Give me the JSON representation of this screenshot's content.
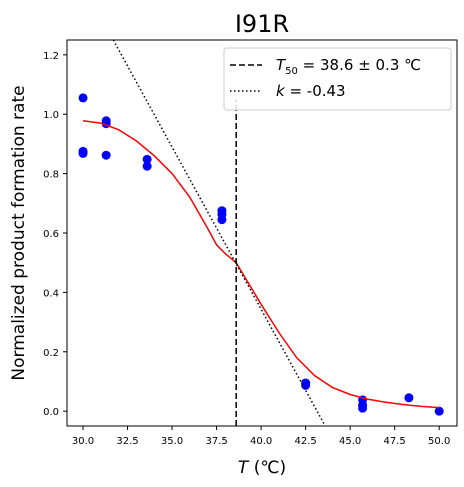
{
  "chart_data": {
    "type": "scatter",
    "title": "I91R",
    "xlabel_italic": "T",
    "xlabel_unit": " (℃)",
    "ylabel": "Normalized product formation rate",
    "xlim": [
      29.1,
      51.0
    ],
    "ylim": [
      -0.05,
      1.25
    ],
    "xticks": [
      30.0,
      32.5,
      35.0,
      37.5,
      40.0,
      42.5,
      45.0,
      47.5,
      50.0
    ],
    "xtick_labels": [
      "30.0",
      "32.5",
      "35.0",
      "37.5",
      "40.0",
      "42.5",
      "45.0",
      "47.5",
      "50.0"
    ],
    "yticks": [
      0.0,
      0.2,
      0.4,
      0.6,
      0.8,
      1.0,
      1.2
    ],
    "ytick_labels": [
      "0.0",
      "0.2",
      "0.4",
      "0.6",
      "0.8",
      "1.0",
      "1.2"
    ],
    "points": {
      "color": "#0000ff",
      "x": [
        30.0,
        30.0,
        30.0,
        31.3,
        31.3,
        31.3,
        33.6,
        33.6,
        37.8,
        37.8,
        37.8,
        42.5,
        42.5,
        45.7,
        45.7,
        45.7,
        48.3,
        50.0
      ],
      "y": [
        1.055,
        0.875,
        0.868,
        0.978,
        0.968,
        0.862,
        0.848,
        0.825,
        0.675,
        0.663,
        0.645,
        0.095,
        0.087,
        0.038,
        0.02,
        0.01,
        0.045,
        0.0
      ]
    },
    "fit_curve": {
      "color": "#ff0000",
      "x": [
        30.0,
        31.0,
        32.0,
        33.0,
        34.0,
        35.0,
        36.0,
        37.0,
        37.5,
        38.0,
        38.6,
        39.0,
        39.5,
        40.0,
        41.0,
        42.0,
        43.0,
        44.0,
        45.0,
        46.0,
        47.0,
        48.0,
        49.0,
        50.0
      ],
      "y": [
        0.978,
        0.97,
        0.948,
        0.91,
        0.86,
        0.8,
        0.72,
        0.615,
        0.56,
        0.53,
        0.5,
        0.46,
        0.41,
        0.36,
        0.265,
        0.18,
        0.12,
        0.08,
        0.056,
        0.04,
        0.03,
        0.022,
        0.016,
        0.012
      ]
    },
    "vline": {
      "x": 38.6,
      "color": "#000000",
      "style": "dashed"
    },
    "tangent_line": {
      "x": [
        31.7,
        43.6
      ],
      "y": [
        1.25,
        -0.05
      ],
      "color": "#000000",
      "style": "dotted"
    },
    "legend": {
      "placement": "top-right",
      "entries": [
        {
          "symbol": "T",
          "subscript": "50",
          "text": " = 38.6 ± 0.3 ℃",
          "line_style": "dashed"
        },
        {
          "symbol": "k",
          "text": " = -0.43",
          "line_style": "dotted"
        }
      ]
    },
    "grid": false
  }
}
